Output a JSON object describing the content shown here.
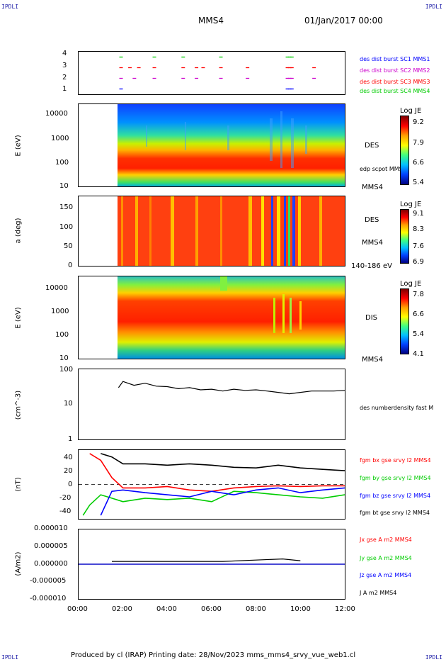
{
  "corners": {
    "tl": "IPDLI",
    "tr": "IPDLI",
    "bl": "IPDLI",
    "br": "IPDLI"
  },
  "header": {
    "spacecraft": "MMS4",
    "date": "01/Jan/2017 00:00"
  },
  "footer": {
    "text": "Produced by cl (IRAP)   Printing date: 28/Nov/2023   mms_mms4_srvy_vue_web1.cl"
  },
  "colors": {
    "red": "#ff0000",
    "green": "#00cc00",
    "blue": "#0000ff",
    "magenta": "#cc00cc",
    "black": "#000000"
  },
  "xaxis": {
    "ticks": [
      "00:00",
      "02:00",
      "04:00",
      "06:00",
      "08:00",
      "10:00",
      "12:00"
    ],
    "range_hours": [
      0,
      12
    ]
  },
  "chart_data": [
    {
      "type": "scatter",
      "panel": "burst",
      "ylim": [
        0.5,
        4.5
      ],
      "yticks": [
        "4",
        "3",
        "2",
        "1"
      ],
      "series": [
        {
          "name": "des dist burst SC1 MMS1",
          "color": "#0000ff",
          "y": 1,
          "x": [
            1.9,
            9.4,
            9.5,
            9.6
          ]
        },
        {
          "name": "des dist burst SC2 MMS2",
          "color": "#cc00cc",
          "y": 2,
          "x": [
            1.9,
            2.5,
            3.4,
            4.7,
            5.3,
            6.4,
            7.6,
            9.4,
            9.5,
            9.6,
            10.6
          ]
        },
        {
          "name": "des dist burst SC3 MMS3",
          "color": "#ff0000",
          "y": 3,
          "x": [
            1.9,
            2.3,
            2.7,
            3.4,
            4.7,
            5.3,
            5.6,
            6.4,
            7.6,
            9.4,
            9.5,
            9.6,
            10.6
          ]
        },
        {
          "name": "des dist burst SC4 MMS4",
          "color": "#00cc00",
          "y": 4,
          "x": [
            1.9,
            3.4,
            4.7,
            6.4,
            9.4,
            9.5,
            9.6
          ]
        }
      ]
    },
    {
      "type": "heatmap",
      "panel": "des-energy",
      "ylabel": "E (eV)",
      "yticks": [
        "10000",
        "1000",
        "100",
        "10"
      ],
      "ylim": [
        10,
        30000
      ],
      "log": true,
      "right_labels": [
        "DES",
        "edp scpot MMS4",
        "MMS4"
      ],
      "colorbar": {
        "title": "Log JE",
        "ticks": [
          "9.2",
          "7.9",
          "6.6",
          "5.4"
        ],
        "range": [
          5.4,
          9.2
        ]
      }
    },
    {
      "type": "heatmap",
      "panel": "des-pitch",
      "ylabel": "a (deg)",
      "yticks": [
        "150",
        "100",
        "50",
        "0"
      ],
      "ylim": [
        0,
        180
      ],
      "right_labels": [
        "DES",
        "MMS4",
        "140-186 eV"
      ],
      "colorbar": {
        "title": "Log JE",
        "ticks": [
          "9.1",
          "8.3",
          "7.6",
          "6.9"
        ],
        "range": [
          6.9,
          9.1
        ]
      }
    },
    {
      "type": "heatmap",
      "panel": "dis-energy",
      "ylabel": "E (eV)",
      "yticks": [
        "10000",
        "1000",
        "100",
        "10"
      ],
      "ylim": [
        10,
        30000
      ],
      "log": true,
      "right_labels": [
        "DIS",
        "MMS4"
      ],
      "colorbar": {
        "title": "Log JE",
        "ticks": [
          "7.8",
          "6.6",
          "5.4",
          "4.1"
        ],
        "range": [
          4.1,
          7.8
        ]
      }
    },
    {
      "type": "line",
      "panel": "density",
      "ylabel": "(cm^-3)",
      "yticks": [
        "100",
        "10",
        "1"
      ],
      "ylim": [
        1,
        100
      ],
      "log": true,
      "series": [
        {
          "name": "des numberdensity fast M",
          "color": "#000000",
          "x": [
            1.8,
            2.0,
            2.5,
            3.0,
            3.5,
            4.0,
            4.5,
            5.0,
            5.5,
            6.0,
            6.5,
            7.0,
            7.5,
            8.0,
            8.5,
            9.0,
            9.5,
            10.0,
            10.5,
            11.0,
            11.5,
            12.0
          ],
          "values": [
            30,
            45,
            35,
            40,
            33,
            32,
            28,
            30,
            26,
            27,
            24,
            27,
            25,
            26,
            24,
            22,
            20,
            22,
            24,
            24,
            24,
            25
          ]
        }
      ]
    },
    {
      "type": "line",
      "panel": "fgm",
      "ylabel": "(nT)",
      "yticks": [
        "40",
        "20",
        "0",
        "-20",
        "-40"
      ],
      "ylim": [
        -50,
        50
      ],
      "series": [
        {
          "name": "fgm bx gse srvy l2 MMS4",
          "color": "#ff0000",
          "x": [
            0.5,
            1.0,
            1.5,
            2.0,
            3.0,
            4.0,
            5.0,
            6.0,
            7.0,
            8.0,
            9.0,
            10.0,
            11.0,
            12.0
          ],
          "values": [
            45,
            35,
            10,
            -5,
            -5,
            -3,
            -8,
            -10,
            -5,
            -3,
            -2,
            -3,
            -2,
            -2
          ]
        },
        {
          "name": "fgm by gse srvy l2 MMS4",
          "color": "#00cc00",
          "x": [
            0.2,
            0.5,
            1.0,
            1.5,
            2.0,
            3.0,
            4.0,
            5.0,
            6.0,
            7.0,
            8.0,
            9.0,
            10.0,
            11.0,
            12.0
          ],
          "values": [
            -45,
            -30,
            -15,
            -20,
            -25,
            -20,
            -22,
            -20,
            -25,
            -10,
            -12,
            -15,
            -18,
            -20,
            -15
          ]
        },
        {
          "name": "fgm bz gse srvy l2 MMS4",
          "color": "#0000ff",
          "x": [
            1.0,
            1.5,
            2.0,
            3.0,
            4.0,
            5.0,
            6.0,
            7.0,
            8.0,
            9.0,
            10.0,
            11.0,
            12.0
          ],
          "values": [
            -45,
            -10,
            -8,
            -12,
            -15,
            -18,
            -10,
            -15,
            -8,
            -5,
            -12,
            -8,
            -5
          ]
        },
        {
          "name": "fgm bt gse srvy l2 MMS4",
          "color": "#000000",
          "x": [
            1.0,
            1.5,
            2.0,
            3.0,
            4.0,
            5.0,
            6.0,
            7.0,
            8.0,
            9.0,
            10.0,
            11.0,
            12.0
          ],
          "values": [
            45,
            40,
            30,
            30,
            28,
            30,
            28,
            25,
            24,
            28,
            24,
            22,
            20
          ]
        }
      ]
    },
    {
      "type": "line",
      "panel": "current",
      "ylabel": "(A/m2)",
      "yticks": [
        "0.000010",
        "0.000005",
        "0.000000",
        "-0.000005",
        "-0.000010"
      ],
      "ylim": [
        -1e-05,
        1e-05
      ],
      "series": [
        {
          "name": "Jx gse A m2 MMS4",
          "color": "#ff0000",
          "x": [
            0,
            12
          ],
          "values": [
            0,
            0
          ]
        },
        {
          "name": "Jy gse A m2 MMS4",
          "color": "#00cc00",
          "x": [
            0,
            12
          ],
          "values": [
            0,
            0
          ]
        },
        {
          "name": "Jz gse A m2 MMS4",
          "color": "#0000ff",
          "x": [
            0,
            12
          ],
          "values": [
            0,
            0
          ]
        },
        {
          "name": "J A m2 MMS4",
          "color": "#000000",
          "x": [
            1.5,
            3.0,
            6.5,
            9.2,
            10.0
          ],
          "values": [
            8e-07,
            8e-07,
            8e-07,
            1.5e-06,
            1e-06
          ]
        }
      ]
    }
  ]
}
